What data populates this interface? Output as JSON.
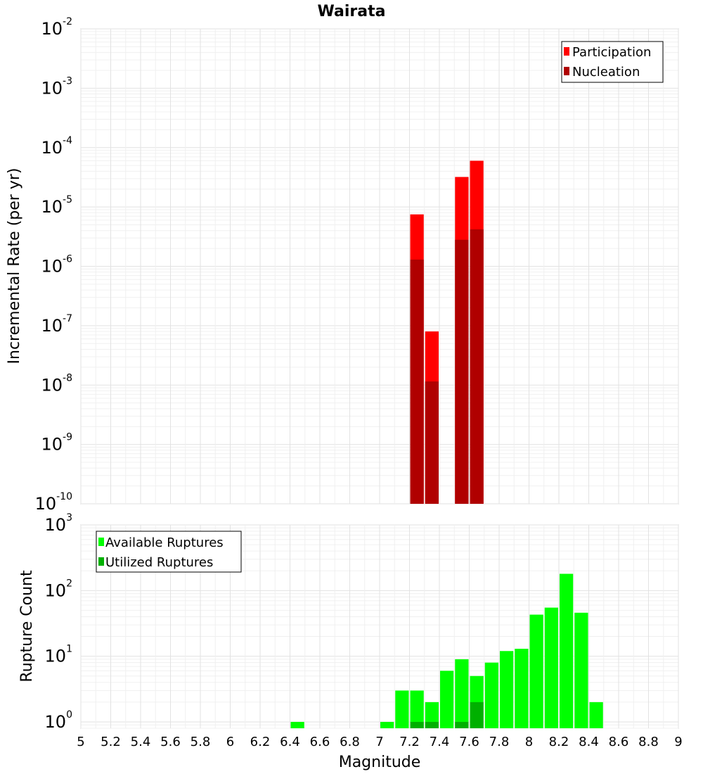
{
  "page_title": "Wairata",
  "chart_data": [
    {
      "type": "bar",
      "title": "Wairata",
      "ylabel": "Incremental Rate (per yr)",
      "xlabel": "",
      "yscale": "log",
      "ylim": [
        1e-10,
        0.01
      ],
      "xlim": [
        5,
        9
      ],
      "x": [
        7.25,
        7.35,
        7.55,
        7.65
      ],
      "series": [
        {
          "name": "Participation",
          "color": "#ff0000",
          "values": [
            7.5e-06,
            8e-08,
            3.2e-05,
            6e-05
          ]
        },
        {
          "name": "Nucleation",
          "color": "#b00000",
          "values": [
            1.3e-06,
            1.15e-08,
            2.8e-06,
            4.2e-06
          ]
        }
      ],
      "legend_position": "top-right",
      "grid": true
    },
    {
      "type": "bar",
      "title": "",
      "ylabel": "Rupture Count",
      "xlabel": "Magnitude",
      "yscale": "log",
      "ylim": [
        0.8,
        1000
      ],
      "xlim": [
        5,
        9
      ],
      "x": [
        6.45,
        7.05,
        7.15,
        7.25,
        7.35,
        7.45,
        7.55,
        7.65,
        7.75,
        7.85,
        7.95,
        8.05,
        8.15,
        8.25,
        8.35,
        8.45
      ],
      "series": [
        {
          "name": "Available Ruptures",
          "color": "#00ff00",
          "values": [
            1,
            1,
            3,
            3,
            2,
            6,
            9,
            5,
            8,
            12,
            13,
            43,
            55,
            180,
            46,
            2
          ]
        },
        {
          "name": "Utilized Ruptures",
          "color": "#00b000",
          "values": [
            0,
            0,
            0,
            1,
            1,
            0,
            1,
            2,
            0,
            0,
            0,
            0,
            0,
            0,
            0,
            0
          ]
        }
      ],
      "legend_position": "top-left",
      "grid": true
    }
  ],
  "x_ticks": [
    "5",
    "5.2",
    "5.4",
    "5.6",
    "5.8",
    "6",
    "6.2",
    "6.4",
    "6.6",
    "6.8",
    "7",
    "7.2",
    "7.4",
    "7.6",
    "7.8",
    "8",
    "8.2",
    "8.4",
    "8.6",
    "8.8",
    "9"
  ],
  "top_y_ticks": [
    {
      "base": "10",
      "exp": "-10"
    },
    {
      "base": "10",
      "exp": "-9"
    },
    {
      "base": "10",
      "exp": "-8"
    },
    {
      "base": "10",
      "exp": "-7"
    },
    {
      "base": "10",
      "exp": "-6"
    },
    {
      "base": "10",
      "exp": "-5"
    },
    {
      "base": "10",
      "exp": "-4"
    },
    {
      "base": "10",
      "exp": "-3"
    },
    {
      "base": "10",
      "exp": "-2"
    }
  ],
  "bottom_y_ticks": [
    {
      "base": "10",
      "exp": "0"
    },
    {
      "base": "10",
      "exp": "1"
    },
    {
      "base": "10",
      "exp": "2"
    },
    {
      "base": "10",
      "exp": "3"
    }
  ]
}
